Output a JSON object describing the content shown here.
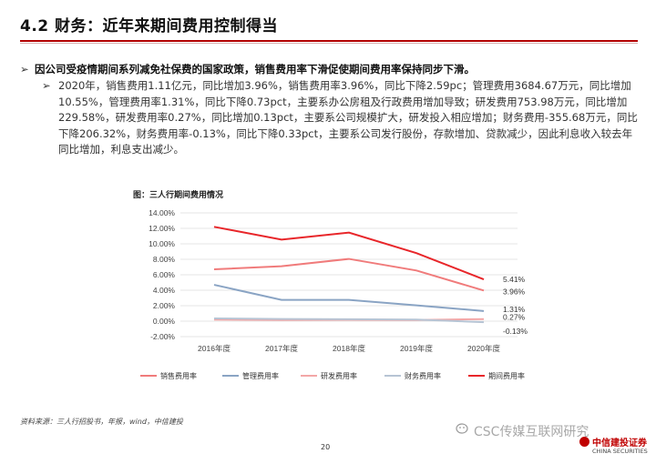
{
  "header": {
    "title": "4.2 财务：近年来期间费用控制得当"
  },
  "bullets": {
    "b1": "因公司受疫情期间系列减免社保费的国家政策，销售费用率下滑促使期间费用率保持同步下滑。",
    "b2": "2020年，销售费用1.11亿元，同比增加3.96%，销售费用率3.96%，同比下降2.59pc；管理费用3684.67万元，同比增加10.55%，管理费用率1.31%，同比下降0.73pct，主要系办公房租及行政费用增加导致；研发费用753.98万元，同比增加229.58%，研发费用率0.27%，同比增加0.13pct，主要系公司规模扩大，研发投入相应增加；财务费用-355.68万元，同比下降206.32%，财务费用率-0.13%，同比下降0.33pct，主要系公司发行股份，存款增加、贷款减少，因此利息收入较去年同比增加，利息支出减少。"
  },
  "chart_title": "图：三人行期间费用情况",
  "chart_data": {
    "type": "line",
    "categories": [
      "2016年度",
      "2017年度",
      "2018年度",
      "2019年度",
      "2020年度"
    ],
    "ylim": [
      -0.02,
      0.14
    ],
    "yticks": [
      "-2.00%",
      "0.00%",
      "2.00%",
      "4.00%",
      "6.00%",
      "8.00%",
      "10.00%",
      "12.00%",
      "14.00%"
    ],
    "grid": true,
    "legend_position": "bottom",
    "series": [
      {
        "name": "销售费用率",
        "color": "#f07b7b",
        "values": [
          0.067,
          0.071,
          0.0805,
          0.0655,
          0.0396
        ]
      },
      {
        "name": "管理费用率",
        "color": "#8aa4c4",
        "values": [
          0.047,
          0.0275,
          0.0275,
          0.0205,
          0.0131
        ]
      },
      {
        "name": "研发费用率",
        "color": "#f3a7a7",
        "values": [
          0.002,
          0.0015,
          0.0018,
          0.0014,
          0.0027
        ]
      },
      {
        "name": "财务费用率",
        "color": "#b7c4d4",
        "values": [
          0.0035,
          0.0028,
          0.0025,
          0.002,
          -0.0013
        ]
      },
      {
        "name": "期间费用率",
        "color": "#e8262a",
        "values": [
          0.122,
          0.1055,
          0.1145,
          0.088,
          0.0541
        ]
      }
    ],
    "end_labels": [
      "5.41%",
      "3.96%",
      "1.31%",
      "0.27%",
      "-0.13%"
    ]
  },
  "source": "资料来源：三人行招股书，年报，wind，中信建投",
  "page_number": "20",
  "watermark": "CSC传媒互联网研究",
  "logo": {
    "cn": "中信建投证券",
    "en": "CHINA SECURITIES"
  }
}
